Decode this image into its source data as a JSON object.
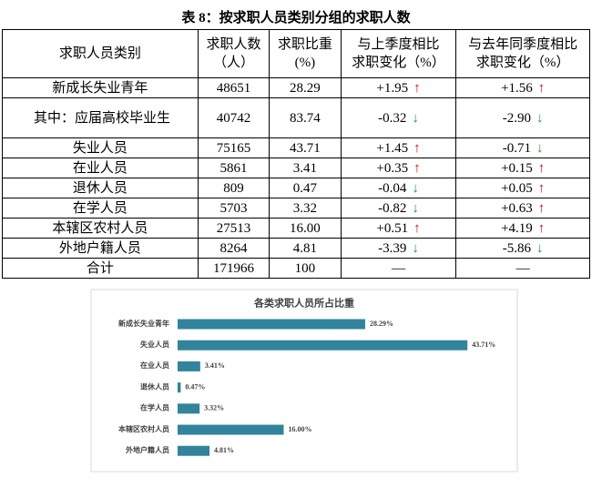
{
  "title": "表 8：按求职人员类别分组的求职人数",
  "table": {
    "header": [
      "求职人员类别",
      "求职人数\n（人）",
      "求职比重\n(%)",
      "与上季度相比\n求职变化（%）",
      "与去年同季度相比\n求职变化（%）"
    ],
    "rows": [
      [
        "新成长失业青年",
        "48651",
        "28.29",
        "+1.95",
        "+1.56"
      ],
      [
        "其中：应届高校毕业生",
        "40742",
        "83.74",
        "-0.32",
        "-2.90"
      ],
      [
        "失业人员",
        "75165",
        "43.71",
        "+1.45",
        "-0.71"
      ],
      [
        "在业人员",
        "5861",
        "3.41",
        "+0.35",
        "+0.15"
      ],
      [
        "退休人员",
        "809",
        "0.47",
        "-0.04",
        "+0.05"
      ],
      [
        "在学人员",
        "5703",
        "3.32",
        "-0.82",
        "+0.63"
      ],
      [
        "本辖区农村人员",
        "27513",
        "16.00",
        "+0.51",
        "+4.19"
      ],
      [
        "外地户籍人员",
        "8264",
        "4.81",
        "-3.39",
        "-5.86"
      ],
      [
        "合计",
        "171966",
        "100",
        "—",
        "—"
      ]
    ]
  },
  "chart_data": {
    "type": "bar",
    "orientation": "horizontal",
    "title": "各类求职人员所占比重",
    "categories": [
      "新成长失业青年",
      "失业人员",
      "在业人员",
      "退休人员",
      "在学人员",
      "本辖区农村人员",
      "外地户籍人员"
    ],
    "values": [
      28.29,
      43.71,
      3.41,
      0.47,
      3.32,
      16.0,
      4.81
    ],
    "value_labels": [
      "28.29%",
      "43.71%",
      "3.41%",
      "0.47%",
      "3.32%",
      "16.00%",
      "4.81%"
    ],
    "color": "#31849b"
  }
}
